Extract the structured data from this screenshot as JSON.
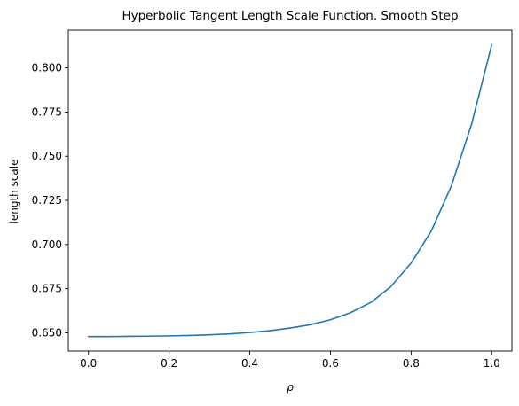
{
  "chart_data": {
    "type": "line",
    "title": "Hyperbolic Tangent Length Scale Function. Smooth Step",
    "xlabel": "ρ",
    "ylabel": "length scale",
    "xlim": [
      -0.05,
      1.05
    ],
    "ylim": [
      0.6397,
      0.8214
    ],
    "xticks": [
      0.0,
      0.2,
      0.4,
      0.6,
      0.8,
      1.0
    ],
    "xtick_labels": [
      "0.0",
      "0.2",
      "0.4",
      "0.6",
      "0.8",
      "1.0"
    ],
    "yticks": [
      0.65,
      0.675,
      0.7,
      0.725,
      0.75,
      0.775,
      0.8
    ],
    "ytick_labels": [
      "0.650",
      "0.675",
      "0.700",
      "0.725",
      "0.750",
      "0.775",
      "0.800"
    ],
    "grid": false,
    "legend": "none",
    "series": [
      {
        "color": "#1f77b4",
        "x": [
          0.0,
          0.05,
          0.1,
          0.15,
          0.2,
          0.25,
          0.3,
          0.35,
          0.4,
          0.45,
          0.5,
          0.55,
          0.6,
          0.65,
          0.7,
          0.75,
          0.8,
          0.85,
          0.9,
          0.95,
          1.0
        ],
        "y": [
          0.6479,
          0.6479,
          0.648,
          0.6481,
          0.6483,
          0.6485,
          0.6489,
          0.6494,
          0.6502,
          0.6512,
          0.6527,
          0.6546,
          0.6574,
          0.6614,
          0.6672,
          0.6762,
          0.6895,
          0.7076,
          0.7333,
          0.7681,
          0.8132
        ]
      }
    ]
  }
}
